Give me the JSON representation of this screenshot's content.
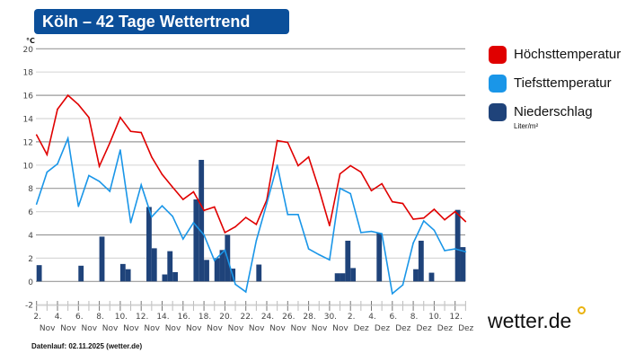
{
  "header": {
    "title": "Köln – 42 Tage Wettertrend"
  },
  "footer": {
    "text": "Datenlauf: 02.11.2025 (wetter.de)"
  },
  "logo": {
    "text": "wetter.de"
  },
  "legend": {
    "unit_note": "Liter/m²"
  },
  "chart_data": {
    "type": "line+bar",
    "y_unit": "°C",
    "ylim": [
      -2,
      20
    ],
    "yticks": [
      -2,
      0,
      2,
      4,
      6,
      8,
      10,
      12,
      14,
      16,
      18,
      20
    ],
    "grid": true,
    "legend_placement": "right",
    "start_date": "2025-11-02",
    "xtick_labels": [
      [
        "2.",
        "Nov"
      ],
      [
        "4.",
        "Nov"
      ],
      [
        "6.",
        "Nov"
      ],
      [
        "8.",
        "Nov"
      ],
      [
        "10.",
        "Nov"
      ],
      [
        "12.",
        "Nov"
      ],
      [
        "14.",
        "Nov"
      ],
      [
        "16.",
        "Nov"
      ],
      [
        "18.",
        "Nov"
      ],
      [
        "20.",
        "Nov"
      ],
      [
        "22.",
        "Nov"
      ],
      [
        "24.",
        "Nov"
      ],
      [
        "26.",
        "Nov"
      ],
      [
        "28.",
        "Nov"
      ],
      [
        "30.",
        "Nov"
      ],
      [
        "2.",
        "Dez"
      ],
      [
        "4.",
        "Dez"
      ],
      [
        "6.",
        "Dez"
      ],
      [
        "8.",
        "Dez"
      ],
      [
        "10.",
        "Dez"
      ],
      [
        "12.",
        "Dez"
      ]
    ],
    "series": [
      {
        "name": "Höchsttemperatur",
        "color": "#e00000",
        "type": "line",
        "values": [
          12.6,
          10.9,
          14.8,
          16.0,
          15.2,
          14.1,
          9.9,
          11.9,
          14.1,
          12.9,
          12.8,
          10.7,
          9.2,
          8.1,
          7.05,
          7.7,
          6.1,
          6.4,
          4.2,
          4.7,
          5.5,
          4.9,
          7.0,
          12.1,
          11.95,
          9.95,
          10.7,
          7.9,
          4.8,
          9.25,
          9.95,
          9.4,
          7.8,
          8.4,
          6.85,
          6.7,
          5.35,
          5.45,
          6.2,
          5.3,
          6.0,
          5.15
        ]
      },
      {
        "name": "Tiefsttemperatur",
        "color": "#1a96e8",
        "type": "line",
        "values": [
          6.65,
          9.4,
          10.1,
          12.3,
          6.45,
          9.1,
          8.6,
          7.75,
          11.3,
          5.05,
          8.3,
          5.55,
          6.5,
          5.6,
          3.65,
          5.05,
          4.0,
          1.8,
          2.7,
          -0.25,
          -0.9,
          3.5,
          6.7,
          10.0,
          5.75,
          5.75,
          2.8,
          2.3,
          1.85,
          8.0,
          7.55,
          4.2,
          4.3,
          4.1,
          -1.05,
          -0.3,
          3.3,
          5.2,
          4.4,
          2.65,
          2.8,
          2.55
        ]
      },
      {
        "name": "Niederschlag",
        "color": "#1f437a",
        "type": "bar",
        "unit": "Liter/m²",
        "points": [
          {
            "t": "2025-11-02T00:00",
            "v": 1.4
          },
          {
            "t": "2025-11-06T00:00",
            "v": 1.35
          },
          {
            "t": "2025-11-08T00:00",
            "v": 3.85
          },
          {
            "t": "2025-11-10T00:00",
            "v": 1.5
          },
          {
            "t": "2025-11-10T12:00",
            "v": 1.05
          },
          {
            "t": "2025-11-12T12:00",
            "v": 6.4
          },
          {
            "t": "2025-11-13T00:00",
            "v": 2.85
          },
          {
            "t": "2025-11-14T00:00",
            "v": 0.6
          },
          {
            "t": "2025-11-14T12:00",
            "v": 2.6
          },
          {
            "t": "2025-11-15T00:00",
            "v": 0.8
          },
          {
            "t": "2025-11-17T00:00",
            "v": 7.05
          },
          {
            "t": "2025-11-17T12:00",
            "v": 10.45
          },
          {
            "t": "2025-11-18T00:00",
            "v": 1.85
          },
          {
            "t": "2025-11-19T00:00",
            "v": 2.0
          },
          {
            "t": "2025-11-19T12:00",
            "v": 2.7
          },
          {
            "t": "2025-11-20T00:00",
            "v": 4.0
          },
          {
            "t": "2025-11-20T12:00",
            "v": 1.1
          },
          {
            "t": "2025-11-23T00:00",
            "v": 1.45
          },
          {
            "t": "2025-11-30T12:00",
            "v": 0.7
          },
          {
            "t": "2025-12-01T00:00",
            "v": 0.7
          },
          {
            "t": "2025-12-01T12:00",
            "v": 3.5
          },
          {
            "t": "2025-12-02T00:00",
            "v": 1.15
          },
          {
            "t": "2025-12-04T12:00",
            "v": 4.15
          },
          {
            "t": "2025-12-08T00:00",
            "v": 1.05
          },
          {
            "t": "2025-12-08T12:00",
            "v": 3.5
          },
          {
            "t": "2025-12-09T12:00",
            "v": 0.75
          },
          {
            "t": "2025-12-12T00:00",
            "v": 6.15
          },
          {
            "t": "2025-12-12T12:00",
            "v": 2.95
          }
        ]
      }
    ]
  }
}
